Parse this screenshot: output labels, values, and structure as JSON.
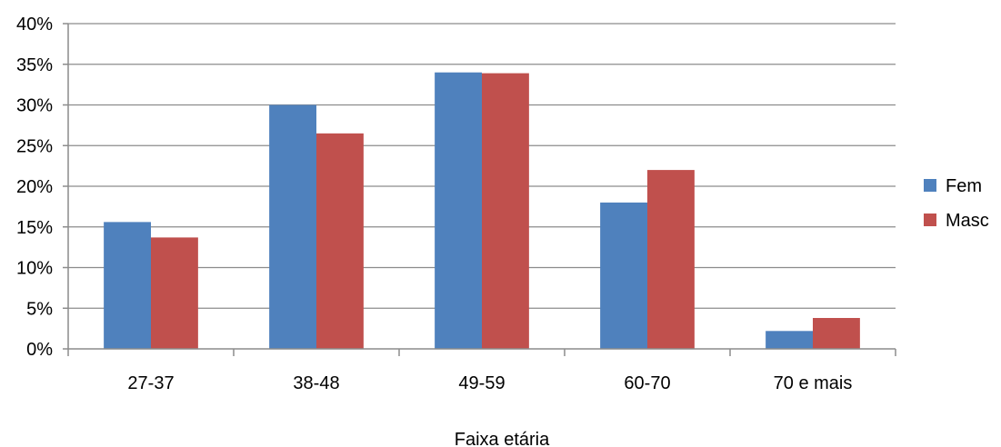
{
  "chart_data": {
    "type": "bar",
    "categories": [
      "27-37",
      "38-48",
      "49-59",
      "60-70",
      "70 e mais"
    ],
    "series": [
      {
        "name": "Fem",
        "color": "#4F81BD",
        "values": [
          15.6,
          30.0,
          34.0,
          18.0,
          2.2
        ]
      },
      {
        "name": "Masc",
        "color": "#C0504D",
        "values": [
          13.7,
          26.5,
          33.9,
          22.0,
          3.8
        ]
      }
    ],
    "y_ticks": [
      "0%",
      "5%",
      "10%",
      "15%",
      "20%",
      "25%",
      "30%",
      "35%",
      "40%"
    ],
    "ylim": [
      0,
      40
    ],
    "y_step": 5,
    "xlabel": "Faixa etária",
    "ylabel": "",
    "title": "",
    "grid": true,
    "legend_position": "right"
  }
}
